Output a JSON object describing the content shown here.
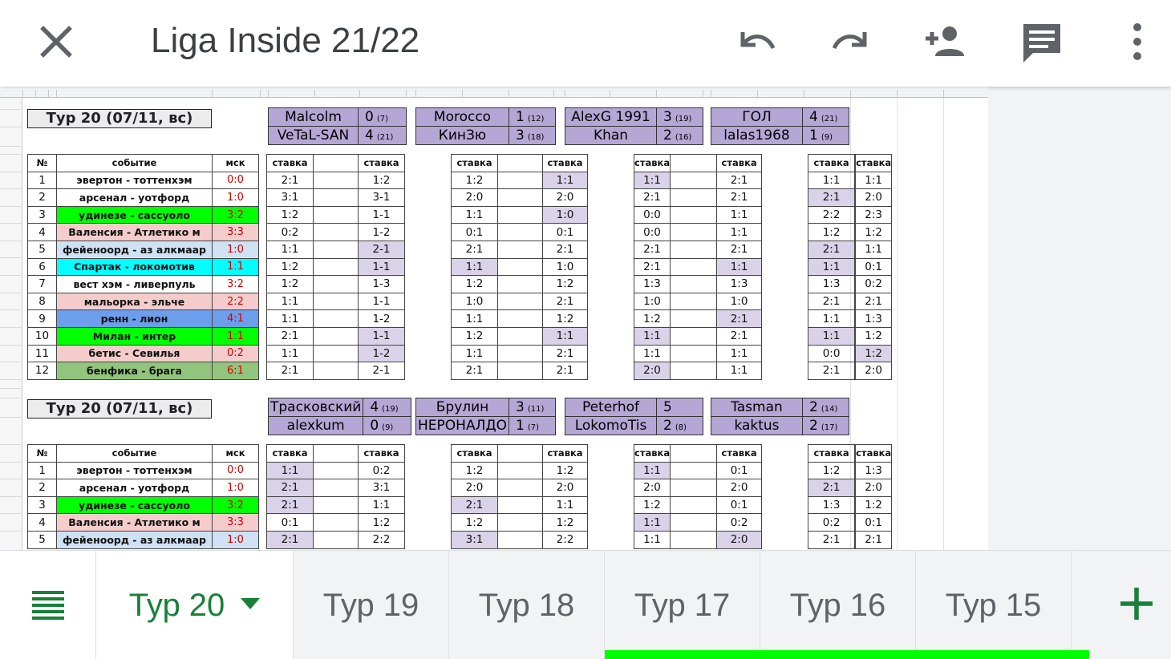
{
  "app_bar": {
    "title": "Liga Inside 21/22",
    "icons": [
      "close-icon",
      "undo-icon",
      "redo-icon",
      "add-person-icon",
      "comment-icon",
      "more-vert-icon"
    ]
  },
  "sheet": {
    "colors": {
      "selected_bet": "#d9d2e9",
      "player_header": "#b4a7d6",
      "green": "#00ff00",
      "pink": "#f4cccc",
      "light_blue": "#cfe2f3",
      "cyan": "#00ffff",
      "blue": "#6d9eeb",
      "olive_green": "#93c47d",
      "score_red": "#d30000"
    },
    "sections": [
      {
        "banner": "Тур 20 (07/11, вс)",
        "headers": {
          "num": "№",
          "event": "событие",
          "score": "мск"
        },
        "pairs": [
          {
            "p1": "Malcolm",
            "s1": "0",
            "r1": "(7)",
            "p2": "VeTaL-SAN",
            "s2": "4",
            "r2": "(21)"
          },
          {
            "p1": "Morocco",
            "s1": "1",
            "r1": "(12)",
            "p2": "КинЗю",
            "s2": "3",
            "r2": "(18)"
          },
          {
            "p1": "AlexG 1991",
            "s1": "3",
            "r1": "(19)",
            "p2": "Khan",
            "s2": "2",
            "r2": "(16)"
          },
          {
            "p1": "ГОЛ",
            "s1": "4",
            "r1": "(21)",
            "p2": "lalas1968",
            "s2": "1",
            "r2": "(9)"
          }
        ],
        "bet_headers": [
          "ставка",
          "ставка",
          "ставка",
          "ставка",
          "ставка",
          "ставка",
          "ставка",
          "ставка"
        ],
        "rows": [
          {
            "n": "1",
            "event": "эвертон - тоттенхэм",
            "score": "0:0",
            "color": "",
            "bets": [
              "2:1",
              "1:2",
              "1:2",
              "1:1",
              "1:1",
              "2:1",
              "1:1",
              "1:1"
            ],
            "sel": [
              0,
              0,
              0,
              1,
              1,
              0,
              0,
              0
            ]
          },
          {
            "n": "2",
            "event": "арсенал - уотфорд",
            "score": "1:0",
            "color": "",
            "bets": [
              "3:1",
              "3-1",
              "2:0",
              "2:0",
              "2:1",
              "2:1",
              "2:1",
              "2:0"
            ],
            "sel": [
              0,
              0,
              0,
              0,
              0,
              0,
              1,
              0
            ]
          },
          {
            "n": "3",
            "event": "удинезе - сассуоло",
            "score": "3:2",
            "color": "green",
            "bets": [
              "1:2",
              "1-1",
              "1:1",
              "1:0",
              "0:0",
              "1:1",
              "2:2",
              "2:3"
            ],
            "sel": [
              0,
              0,
              0,
              1,
              0,
              0,
              0,
              0
            ]
          },
          {
            "n": "4",
            "event": "Валенсия - Атлетико м",
            "score": "3:3",
            "color": "pink",
            "bets": [
              "0:2",
              "1-2",
              "0:1",
              "0:1",
              "0:0",
              "1:1",
              "1:2",
              "1:2"
            ],
            "sel": [
              0,
              0,
              0,
              0,
              0,
              0,
              0,
              0
            ]
          },
          {
            "n": "5",
            "event": "фейеноорд - аз алкмаар",
            "score": "1:0",
            "color": "light_blue",
            "bets": [
              "1:1",
              "2-1",
              "2:1",
              "2:1",
              "2:1",
              "2:1",
              "2:1",
              "1:1"
            ],
            "sel": [
              0,
              1,
              0,
              0,
              0,
              0,
              1,
              0
            ]
          },
          {
            "n": "6",
            "event": "Спартак - локомотив",
            "score": "1:1",
            "color": "cyan",
            "bets": [
              "1:2",
              "1-1",
              "1:1",
              "1:0",
              "2:1",
              "1:1",
              "1:1",
              "0:1"
            ],
            "sel": [
              0,
              1,
              1,
              0,
              0,
              1,
              1,
              0
            ]
          },
          {
            "n": "7",
            "event": "вест хэм - ливерпуль",
            "score": "3:2",
            "color": "",
            "bets": [
              "1:2",
              "1-3",
              "1:2",
              "1:2",
              "1:3",
              "1:3",
              "1:3",
              "0:2"
            ],
            "sel": [
              0,
              0,
              0,
              0,
              0,
              0,
              0,
              0
            ]
          },
          {
            "n": "8",
            "event": "мальорка - эльче",
            "score": "2:2",
            "color": "pink",
            "bets": [
              "1:1",
              "1-1",
              "1:0",
              "2:1",
              "1:0",
              "1:0",
              "2:1",
              "2:1"
            ],
            "sel": [
              0,
              0,
              0,
              0,
              0,
              0,
              0,
              0
            ]
          },
          {
            "n": "9",
            "event": "ренн - лион",
            "score": "4:1",
            "color": "blue",
            "bets": [
              "1:1",
              "1-2",
              "1:1",
              "1:2",
              "1:2",
              "2:1",
              "1:1",
              "1:3"
            ],
            "sel": [
              0,
              0,
              0,
              0,
              0,
              1,
              0,
              0
            ]
          },
          {
            "n": "10",
            "event": "Милан - интер",
            "score": "1:1",
            "color": "green",
            "bets": [
              "2:1",
              "1-1",
              "1:2",
              "1:1",
              "1:1",
              "2:1",
              "1:1",
              "1:2"
            ],
            "sel": [
              0,
              1,
              0,
              1,
              1,
              0,
              1,
              0
            ]
          },
          {
            "n": "11",
            "event": "бетис - Севилья",
            "score": "0:2",
            "color": "pink",
            "bets": [
              "1:1",
              "1-2",
              "1:1",
              "2:1",
              "1:1",
              "1:1",
              "0:0",
              "1:2"
            ],
            "sel": [
              0,
              1,
              0,
              0,
              0,
              0,
              0,
              1
            ]
          },
          {
            "n": "12",
            "event": "бенфика - брага",
            "score": "6:1",
            "color": "olive_green",
            "bets": [
              "2:1",
              "2-1",
              "2:1",
              "2:1",
              "2:0",
              "1:1",
              "2:1",
              "2:0"
            ],
            "sel": [
              0,
              0,
              0,
              0,
              1,
              0,
              0,
              0
            ]
          }
        ]
      },
      {
        "banner": "Тур 20 (07/11, вс)",
        "headers": {
          "num": "№",
          "event": "событие",
          "score": "мск"
        },
        "pairs": [
          {
            "p1": "Трасковский",
            "s1": "4",
            "r1": "(19)",
            "p2": "alexkum",
            "s2": "0",
            "r2": "(9)"
          },
          {
            "p1": "Брулин",
            "s1": "3",
            "r1": "(11)",
            "p2": "НЕРОНАЛДО",
            "s2": "1",
            "r2": "(7)"
          },
          {
            "p1": "Peterhof",
            "s1": "5",
            "r1": "",
            "p2": "LokomoTis",
            "s2": "2",
            "r2": "(8)"
          },
          {
            "p1": "Tasman",
            "s1": "2",
            "r1": "(14)",
            "p2": "kaktus",
            "s2": "2",
            "r2": "(17)"
          }
        ],
        "bet_headers": [
          "ставка",
          "ставка",
          "ставка",
          "ставка",
          "ставка",
          "ставка",
          "ставка",
          "ставка"
        ],
        "rows": [
          {
            "n": "1",
            "event": "эвертон - тоттенхэм",
            "score": "0:0",
            "color": "",
            "bets": [
              "1:1",
              "0:2",
              "1:2",
              "1:2",
              "1:1",
              "0:1",
              "1:2",
              "1:3"
            ],
            "sel": [
              1,
              0,
              0,
              0,
              1,
              0,
              0,
              0
            ]
          },
          {
            "n": "2",
            "event": "арсенал - уотфорд",
            "score": "1:0",
            "color": "",
            "bets": [
              "2:1",
              "3:1",
              "2:0",
              "2:0",
              "2:0",
              "2:0",
              "2:1",
              "2:0"
            ],
            "sel": [
              1,
              0,
              0,
              0,
              0,
              0,
              1,
              0
            ]
          },
          {
            "n": "3",
            "event": "удинезе - сассуоло",
            "score": "3:2",
            "color": "green",
            "bets": [
              "2:1",
              "1:1",
              "2:1",
              "1:1",
              "1:2",
              "0:1",
              "1:3",
              "1:2"
            ],
            "sel": [
              1,
              0,
              1,
              0,
              0,
              0,
              0,
              0
            ]
          },
          {
            "n": "4",
            "event": "Валенсия - Атлетико м",
            "score": "3:3",
            "color": "pink",
            "bets": [
              "0:1",
              "1:2",
              "1:2",
              "1:2",
              "1:1",
              "0:2",
              "0:2",
              "0:1"
            ],
            "sel": [
              0,
              0,
              0,
              0,
              1,
              0,
              0,
              0
            ]
          },
          {
            "n": "5",
            "event": "фейеноорд - аз алкмаар",
            "score": "1:0",
            "color": "light_blue",
            "bets": [
              "2:1",
              "2:2",
              "3:1",
              "2:2",
              "1:1",
              "2:0",
              "2:1",
              "2:1"
            ],
            "sel": [
              1,
              0,
              1,
              0,
              0,
              1,
              0,
              0
            ]
          }
        ]
      }
    ]
  },
  "sheet_tabs": {
    "active": "Тур 20",
    "tabs": [
      "Тур 20",
      "Тур 19",
      "Тур 18",
      "Тур 17",
      "Тур 16",
      "Тур 15"
    ],
    "icons": [
      "sheets-list-icon",
      "dropdown-caret-icon",
      "add-sheet-icon"
    ]
  }
}
